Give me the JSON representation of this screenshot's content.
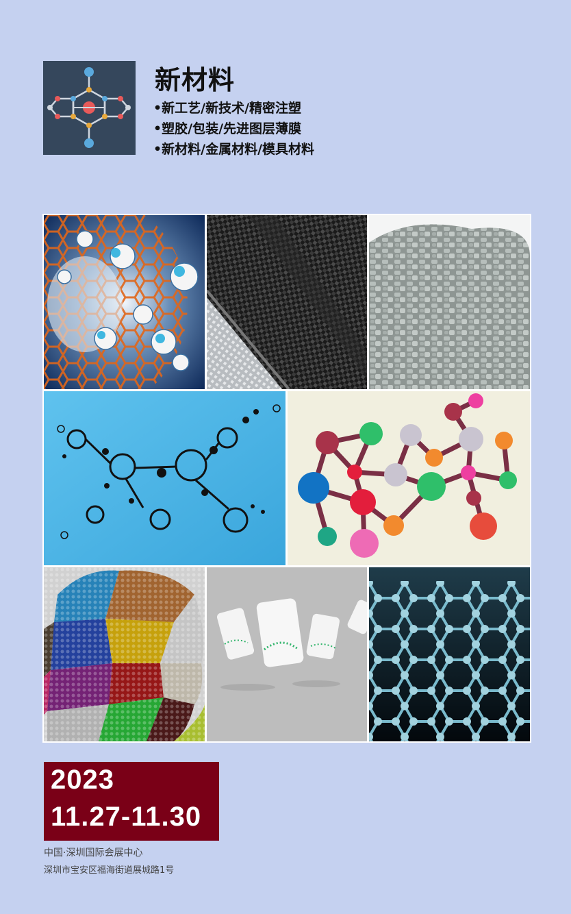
{
  "header": {
    "title": "新材料",
    "bullets": [
      "•新工艺/新技术/精密注塑",
      "•塑胶/包装/先进图层薄膜",
      "•新材料/金属材料/模具材料"
    ]
  },
  "event": {
    "year": "2023",
    "date_range": "11.27-11.30",
    "venue": "中国·深圳国际会展中心",
    "address": "深圳市宝安区福海街道展城路1号"
  },
  "colors": {
    "background": "#c5d1f0",
    "logo_bg": "#35475c",
    "date_bg": "#7a0017"
  },
  "images": [
    "nanotube-molecules-image",
    "carbon-fiber-fabric-image",
    "gray-plastic-pellets-image",
    "molecular-structure-diagram-image",
    "colorful-network-nodes-image",
    "colored-plastic-granules-image",
    "packaging-canisters-image",
    "graphene-lattice-image"
  ]
}
